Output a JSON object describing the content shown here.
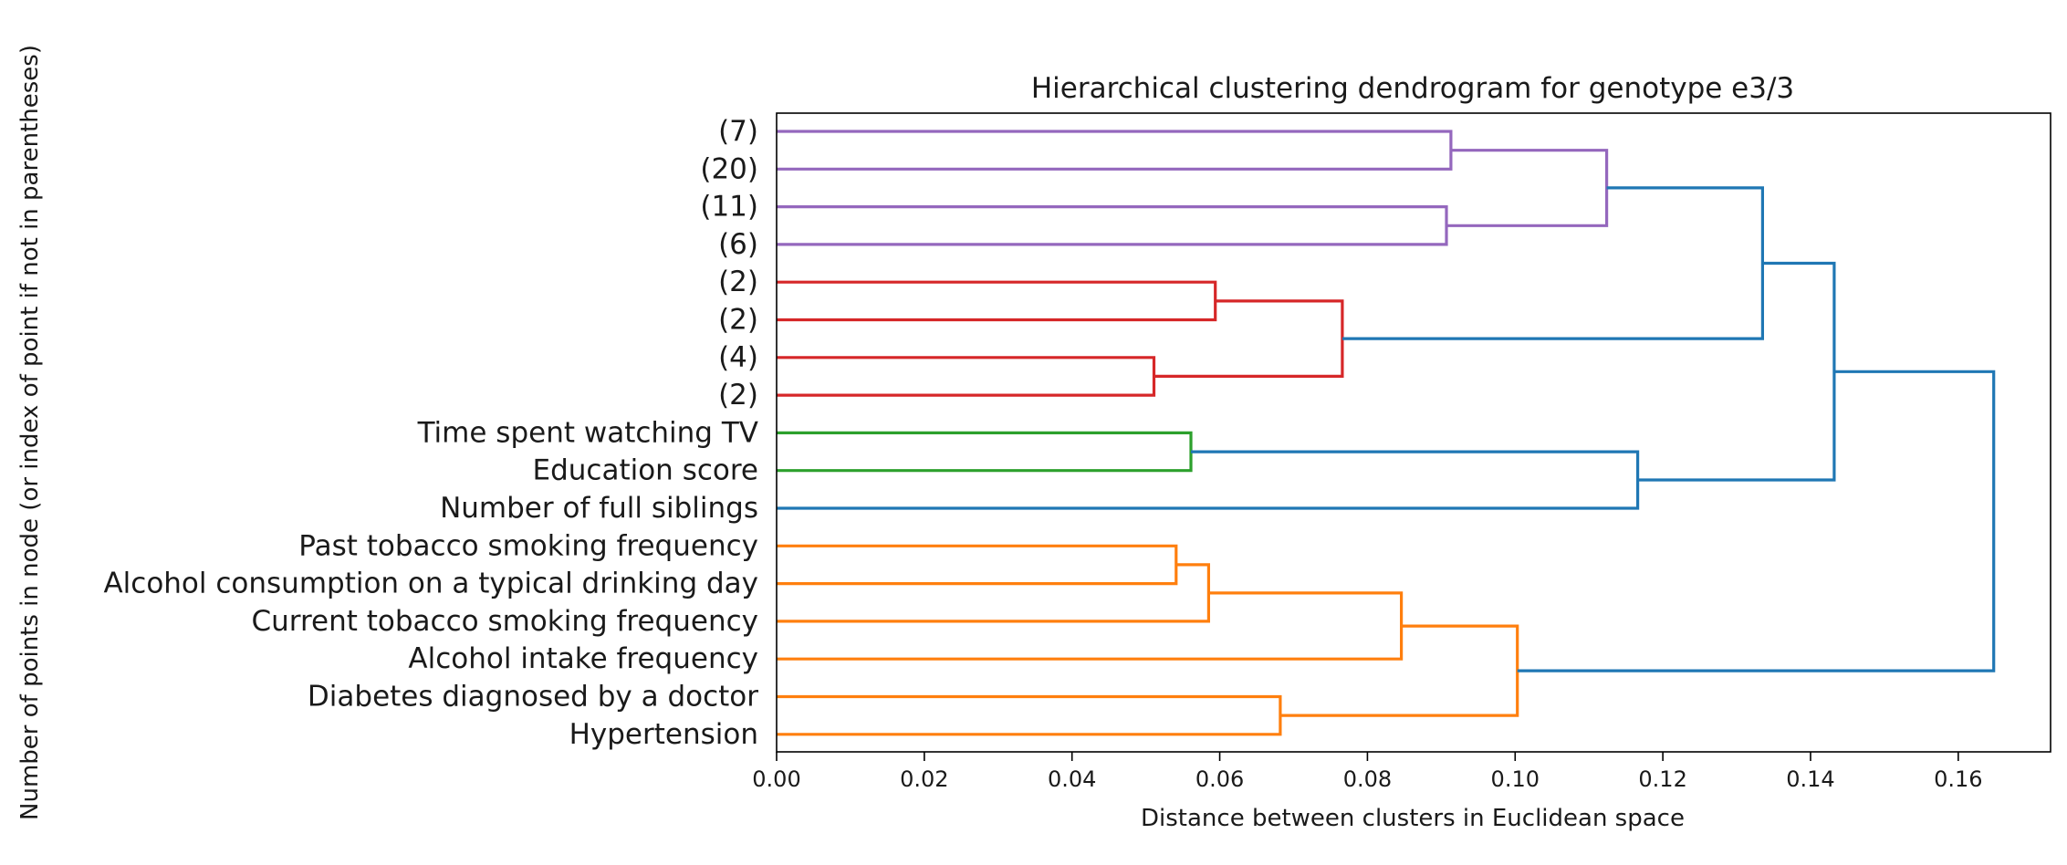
{
  "chart_data": {
    "type": "dendrogram",
    "orientation": "left",
    "title": "Hierarchical clustering dendrogram for genotype e3/3",
    "xlabel": "Distance between clusters in Euclidean space",
    "ylabel": "Number of points in node (or index of point if not in parentheses)",
    "xlim": [
      0,
      0.1725
    ],
    "xticks": [
      "0.00",
      "0.02",
      "0.04",
      "0.06",
      "0.08",
      "0.10",
      "0.12",
      "0.14",
      "0.16"
    ],
    "grid": false,
    "leaves": [
      "(7)",
      "(20)",
      "(11)",
      "(6)",
      "(2)",
      "(2)",
      "(4)",
      "(2)",
      "Time spent watching TV",
      "Education score",
      "Number of full siblings",
      "Past tobacco smoking frequency",
      "Alcohol consumption on a typical drinking day",
      "Current tobacco smoking frequency",
      "Alcohol intake frequency",
      "Diabetes diagnosed by a doctor",
      "Hypertension"
    ],
    "merges": [
      {
        "id": "m1",
        "left": 0,
        "right": 1,
        "distance": 0.0913,
        "color": "#9467bd"
      },
      {
        "id": "m2",
        "left": 2,
        "right": 3,
        "distance": 0.0907,
        "color": "#9467bd"
      },
      {
        "id": "m3",
        "left": "m1",
        "right": "m2",
        "distance": 0.1124,
        "color": "#9467bd"
      },
      {
        "id": "m4",
        "left": 4,
        "right": 5,
        "distance": 0.0594,
        "color": "#d62728"
      },
      {
        "id": "m5",
        "left": 6,
        "right": 7,
        "distance": 0.0511,
        "color": "#d62728"
      },
      {
        "id": "m6",
        "left": "m4",
        "right": "m5",
        "distance": 0.0766,
        "color": "#d62728"
      },
      {
        "id": "m7",
        "left": "m3",
        "right": "m6",
        "distance": 0.1335,
        "color": "#1f77b4"
      },
      {
        "id": "m8",
        "left": 8,
        "right": 9,
        "distance": 0.0561,
        "color": "#2ca02c"
      },
      {
        "id": "m9",
        "left": "m8",
        "right": 10,
        "distance": 0.1166,
        "color": "#1f77b4"
      },
      {
        "id": "m10",
        "left": "m7",
        "right": "m9",
        "distance": 0.1432,
        "color": "#1f77b4"
      },
      {
        "id": "m11",
        "left": 11,
        "right": 12,
        "distance": 0.0541,
        "color": "#ff7f0e"
      },
      {
        "id": "m12",
        "left": "m11",
        "right": 13,
        "distance": 0.0585,
        "color": "#ff7f0e"
      },
      {
        "id": "m13",
        "left": "m12",
        "right": 14,
        "distance": 0.0846,
        "color": "#ff7f0e"
      },
      {
        "id": "m14",
        "left": 15,
        "right": 16,
        "distance": 0.0682,
        "color": "#ff7f0e"
      },
      {
        "id": "m15",
        "left": "m13",
        "right": "m14",
        "distance": 0.1003,
        "color": "#ff7f0e"
      },
      {
        "id": "m16",
        "left": "m10",
        "right": "m15",
        "distance": 0.1648,
        "color": "#1f77b4"
      }
    ]
  }
}
